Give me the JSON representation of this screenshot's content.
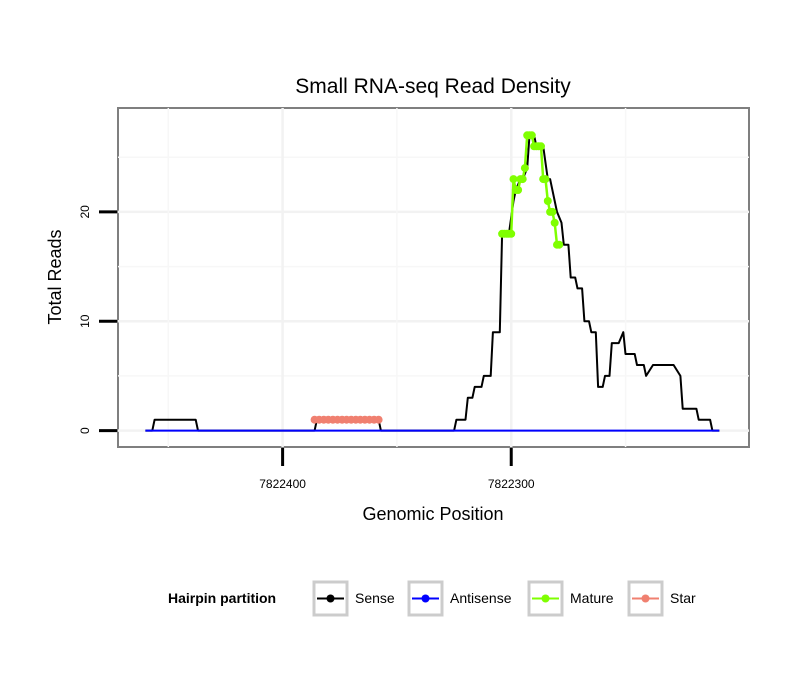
{
  "chart_data": {
    "type": "line",
    "title": "Small RNA-seq Read Density",
    "xlabel": "Genomic Position",
    "ylabel": "Total Reads",
    "xlim": [
      7822472,
      7822196
    ],
    "ylim": [
      -1.5,
      29.5
    ],
    "x_reversed": true,
    "x_ticks": [
      7822400,
      7822300
    ],
    "x_tick_labels": [
      "7822400",
      "7822300"
    ],
    "y_ticks": [
      0,
      10,
      20
    ],
    "y_tick_labels": [
      "0",
      "10",
      "20"
    ],
    "grid": true,
    "legend": {
      "title": "Hairpin partition",
      "position": "bottom",
      "entries": [
        {
          "label": "Sense",
          "color": "#000000"
        },
        {
          "label": "Antisense",
          "color": "#0000ff"
        },
        {
          "label": "Mature",
          "color": "#7fff00"
        },
        {
          "label": "Star",
          "color": "#f08070"
        }
      ]
    },
    "series": [
      {
        "name": "Sense",
        "color": "#000000",
        "x": [
          7822460,
          7822457,
          7822456,
          7822438,
          7822437,
          7822420,
          7822419,
          7822400,
          7822386,
          7822385,
          7822358,
          7822357,
          7822338,
          7822325,
          7822324,
          7822320,
          7822319,
          7822317,
          7822316,
          7822313,
          7822312,
          7822309,
          7822308,
          7822305,
          7822304,
          7822302,
          7822301,
          7822299,
          7822298,
          7822296,
          7822295,
          7822293,
          7822292,
          7822290,
          7822289,
          7822287,
          7822286,
          7822284,
          7822283,
          7822281,
          7822280,
          7822278,
          7822277,
          7822275,
          7822274,
          7822272,
          7822271,
          7822269,
          7822268,
          7822266,
          7822265,
          7822263,
          7822262,
          7822260,
          7822259,
          7822257,
          7822256,
          7822254,
          7822253,
          7822251,
          7822250,
          7822246,
          7822245,
          7822242,
          7822241,
          7822238,
          7822237,
          7822230,
          7822229,
          7822226,
          7822225,
          7822219,
          7822218,
          7822213,
          7822212,
          7822209
        ],
        "y": [
          0,
          0,
          1,
          1,
          0,
          0,
          0,
          0,
          0,
          1,
          1,
          0,
          0,
          0,
          1,
          1,
          3,
          3,
          4,
          4,
          5,
          5,
          9,
          9,
          18,
          18,
          18,
          21,
          22,
          23,
          23,
          24,
          27,
          27,
          26,
          26,
          26,
          23,
          23,
          21,
          20,
          19,
          17,
          17,
          14,
          14,
          13,
          13,
          10,
          10,
          9,
          9,
          4,
          4,
          5,
          5,
          8,
          8,
          8,
          9,
          7,
          7,
          6,
          6,
          5,
          6,
          6,
          6,
          6,
          5,
          2,
          2,
          1,
          1,
          0,
          0
        ]
      },
      {
        "name": "Antisense",
        "color": "#0000ff",
        "x": [
          7822460,
          7822209
        ],
        "y": [
          0,
          0
        ]
      },
      {
        "name": "Mature",
        "color": "#7fff00",
        "x": [
          7822304,
          7822303,
          7822302,
          7822301,
          7822300,
          7822299,
          7822298,
          7822297,
          7822296,
          7822295,
          7822294,
          7822293,
          7822292,
          7822291,
          7822290,
          7822289,
          7822288,
          7822287,
          7822286,
          7822285,
          7822284,
          7822283,
          7822282,
          7822281,
          7822280,
          7822279
        ],
        "y": [
          18,
          18,
          18,
          18,
          18,
          23,
          22,
          22,
          23,
          23,
          24,
          27,
          27,
          27,
          26,
          26,
          26,
          26,
          23,
          23,
          21,
          20,
          20,
          19,
          17,
          17
        ]
      },
      {
        "name": "Star",
        "color": "#f08070",
        "x": [
          7822386,
          7822384,
          7822382,
          7822380,
          7822378,
          7822376,
          7822374,
          7822372,
          7822370,
          7822368,
          7822366,
          7822364,
          7822362,
          7822360,
          7822358
        ],
        "y": [
          1,
          1,
          1,
          1,
          1,
          1,
          1,
          1,
          1,
          1,
          1,
          1,
          1,
          1,
          1
        ]
      }
    ]
  }
}
